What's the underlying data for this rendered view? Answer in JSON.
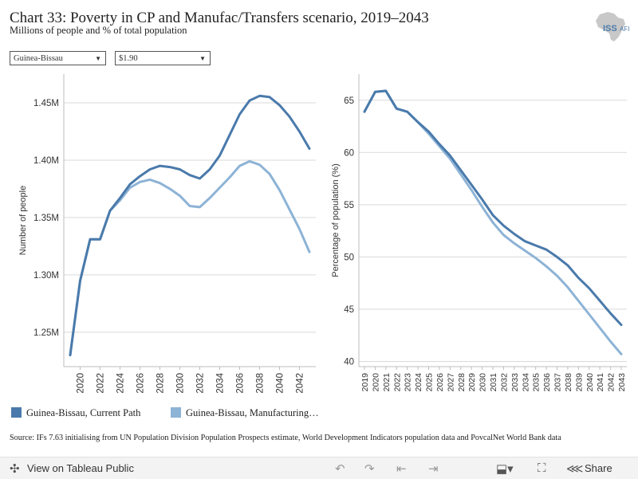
{
  "header": {
    "title": "Chart 33: Poverty in CP and Manufac/Transfers scenario, 2019–2043",
    "subtitle": "Millions of people and % of total population",
    "logo_text": "ISS",
    "logo_subtext": "AFI"
  },
  "filters": {
    "country": "Guinea-Bissau",
    "threshold": "$1.90"
  },
  "colors": {
    "current_path": "#4a7aab",
    "manufacturing": "#8db3d6",
    "grid": "#d9d9d9"
  },
  "chart_data": [
    {
      "type": "line",
      "ylabel": "Number of people",
      "ylim": [
        1.22,
        1.475
      ],
      "yticks": [
        1.25,
        1.3,
        1.35,
        1.4,
        1.45
      ],
      "ytick_labels": [
        "1.25M",
        "1.30M",
        "1.35M",
        "1.40M",
        "1.45M"
      ],
      "xticks": [
        2020,
        2022,
        2024,
        2026,
        2028,
        2030,
        2032,
        2034,
        2036,
        2038,
        2040,
        2042
      ],
      "xtick_labels": [
        "2020",
        "2022",
        "2024",
        "2026",
        "2028",
        "2030",
        "2032",
        "2034",
        "2036",
        "2038",
        "2040",
        "2042"
      ],
      "grid": true,
      "x": [
        2019,
        2020,
        2021,
        2022,
        2023,
        2024,
        2025,
        2026,
        2027,
        2028,
        2029,
        2030,
        2031,
        2032,
        2033,
        2034,
        2035,
        2036,
        2037,
        2038,
        2039,
        2040,
        2041,
        2042,
        2043
      ],
      "series": [
        {
          "name": "Guinea-Bissau, Current Path",
          "values": [
            1.23,
            1.295,
            1.331,
            1.331,
            1.356,
            1.367,
            1.379,
            1.386,
            1.392,
            1.395,
            1.394,
            1.392,
            1.387,
            1.384,
            1.392,
            1.404,
            1.422,
            1.44,
            1.452,
            1.456,
            1.455,
            1.448,
            1.438,
            1.425,
            1.41
          ]
        },
        {
          "name": "Guinea-Bissau, Manufacturing…",
          "values": [
            1.23,
            1.295,
            1.331,
            1.331,
            1.356,
            1.365,
            1.376,
            1.381,
            1.383,
            1.38,
            1.375,
            1.369,
            1.36,
            1.359,
            1.367,
            1.376,
            1.385,
            1.395,
            1.399,
            1.396,
            1.388,
            1.374,
            1.357,
            1.34,
            1.32
          ]
        }
      ]
    },
    {
      "type": "line",
      "ylabel": "Percentage of population (%)",
      "ylim": [
        39.5,
        67.5
      ],
      "yticks": [
        40,
        45,
        50,
        55,
        60,
        65
      ],
      "ytick_labels": [
        "40",
        "45",
        "50",
        "55",
        "60",
        "65"
      ],
      "xticks": [
        2019,
        2020,
        2021,
        2022,
        2023,
        2024,
        2025,
        2026,
        2027,
        2028,
        2029,
        2030,
        2031,
        2032,
        2033,
        2034,
        2035,
        2036,
        2037,
        2038,
        2039,
        2040,
        2041,
        2042,
        2043
      ],
      "xtick_labels": [
        "2019",
        "2020",
        "2021",
        "2022",
        "2023",
        "2024",
        "2025",
        "2026",
        "2027",
        "2028",
        "2029",
        "2030",
        "2031",
        "2032",
        "2033",
        "2034",
        "2035",
        "2036",
        "2037",
        "2038",
        "2039",
        "2040",
        "2041",
        "2042",
        "2043"
      ],
      "grid": true,
      "x": [
        2019,
        2020,
        2021,
        2022,
        2023,
        2024,
        2025,
        2026,
        2027,
        2028,
        2029,
        2030,
        2031,
        2032,
        2033,
        2034,
        2035,
        2036,
        2037,
        2038,
        2039,
        2040,
        2041,
        2042,
        2043
      ],
      "series": [
        {
          "name": "Guinea-Bissau, Current Path",
          "values": [
            63.9,
            65.8,
            65.9,
            64.2,
            63.9,
            62.9,
            62.0,
            60.8,
            59.7,
            58.3,
            56.9,
            55.5,
            54.0,
            53.0,
            52.2,
            51.5,
            51.1,
            50.7,
            50.0,
            49.2,
            48.0,
            47.0,
            45.8,
            44.6,
            43.5
          ]
        },
        {
          "name": "Guinea-Bissau, Manufacturing…",
          "values": [
            63.9,
            65.8,
            65.9,
            64.2,
            63.9,
            62.9,
            61.8,
            60.6,
            59.4,
            57.9,
            56.4,
            54.8,
            53.3,
            52.1,
            51.3,
            50.6,
            49.9,
            49.1,
            48.2,
            47.1,
            45.8,
            44.5,
            43.2,
            41.9,
            40.7
          ]
        }
      ]
    }
  ],
  "legend": {
    "current_path": "Guinea-Bissau, Current Path",
    "manufacturing": "Guinea-Bissau, Manufacturing…"
  },
  "source": "Source: IFs 7.63 initialising from UN Population Division Population Prospects estimate, World Development Indicators population data and PovcalNet World Bank data",
  "footer": {
    "view_label": "View on Tableau Public",
    "share_label": "Share",
    "icons": [
      "tableau-icon",
      "undo-icon",
      "redo-icon",
      "revert-icon",
      "forward-icon",
      "download-icon",
      "fullscreen-icon",
      "share-icon"
    ]
  }
}
